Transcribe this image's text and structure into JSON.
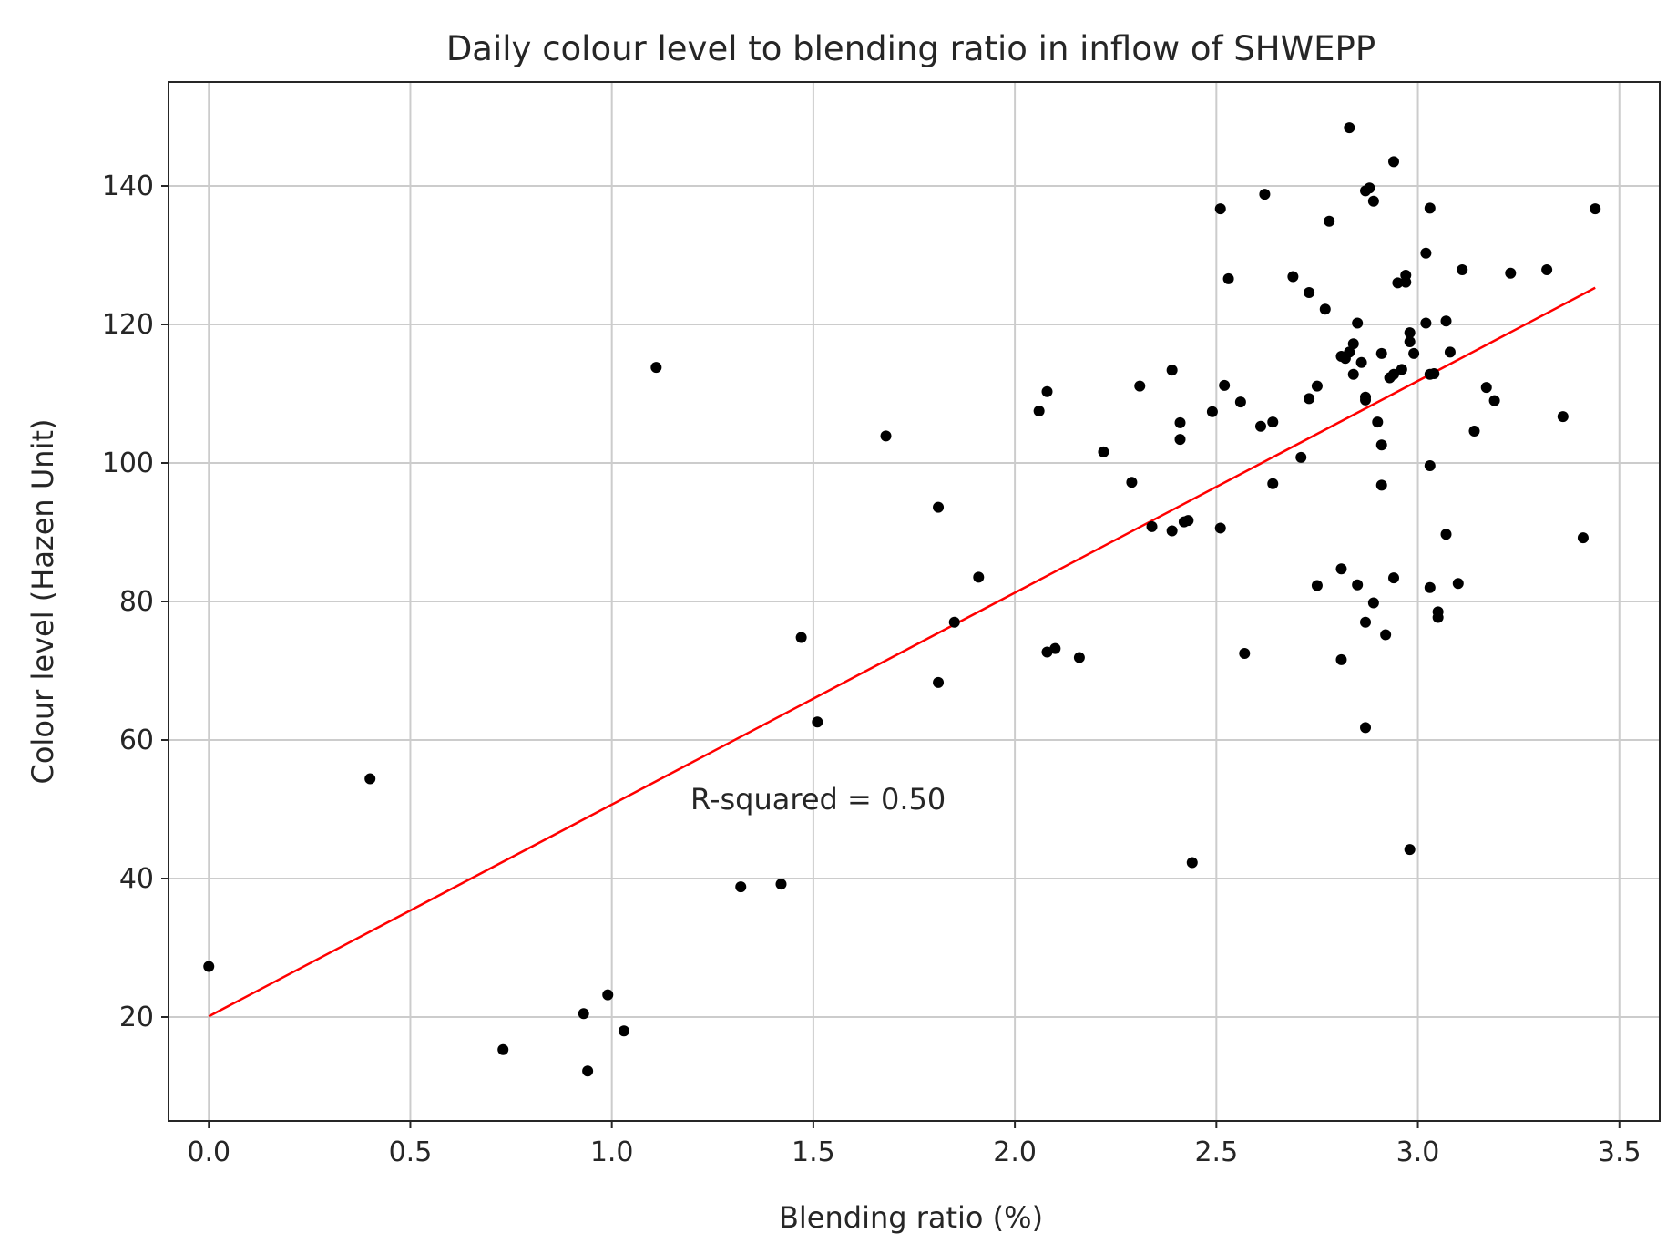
{
  "chart_data": {
    "type": "scatter",
    "title": "Daily colour level to blending ratio in inflow of SHWEPP",
    "xlabel": "Blending ratio (%)",
    "ylabel": "Colour level (Hazen Unit)",
    "xlim": [
      -0.1,
      3.6
    ],
    "ylim": [
      5,
      155
    ],
    "x_ticks": [
      0.0,
      0.5,
      1.0,
      1.5,
      2.0,
      2.5,
      3.0,
      3.5
    ],
    "x_tick_labels": [
      "0.0",
      "0.5",
      "1.0",
      "1.5",
      "2.0",
      "2.5",
      "3.0",
      "3.5"
    ],
    "y_ticks": [
      20,
      40,
      60,
      80,
      100,
      120,
      140
    ],
    "y_tick_labels": [
      "20",
      "40",
      "60",
      "80",
      "100",
      "120",
      "140"
    ],
    "grid": true,
    "annotation": "R-squared = 0.50",
    "point_color": "#000000",
    "trend_color": "#ff0000",
    "trendline": {
      "x": [
        0.0,
        3.44
      ],
      "y": [
        20.1,
        125.3
      ]
    },
    "points": [
      [
        0.0,
        27.3
      ],
      [
        0.4,
        54.4
      ],
      [
        0.73,
        15.3
      ],
      [
        0.93,
        20.5
      ],
      [
        0.94,
        12.2
      ],
      [
        0.99,
        23.2
      ],
      [
        1.03,
        18.0
      ],
      [
        1.11,
        113.8
      ],
      [
        1.32,
        38.8
      ],
      [
        1.42,
        39.2
      ],
      [
        1.47,
        74.8
      ],
      [
        1.51,
        62.6
      ],
      [
        1.68,
        103.9
      ],
      [
        1.81,
        93.6
      ],
      [
        1.81,
        68.3
      ],
      [
        1.85,
        77.0
      ],
      [
        1.91,
        83.5
      ],
      [
        2.06,
        107.5
      ],
      [
        2.08,
        110.3
      ],
      [
        2.08,
        72.7
      ],
      [
        2.1,
        73.2
      ],
      [
        2.16,
        71.9
      ],
      [
        2.22,
        101.6
      ],
      [
        2.29,
        97.2
      ],
      [
        2.31,
        111.1
      ],
      [
        2.34,
        90.8
      ],
      [
        2.39,
        113.4
      ],
      [
        2.39,
        90.2
      ],
      [
        2.41,
        105.8
      ],
      [
        2.41,
        103.4
      ],
      [
        2.42,
        91.5
      ],
      [
        2.43,
        91.7
      ],
      [
        2.44,
        42.3
      ],
      [
        2.49,
        107.4
      ],
      [
        2.51,
        136.7
      ],
      [
        2.51,
        90.6
      ],
      [
        2.52,
        111.2
      ],
      [
        2.53,
        126.6
      ],
      [
        2.56,
        108.8
      ],
      [
        2.57,
        72.5
      ],
      [
        2.61,
        105.3
      ],
      [
        2.62,
        138.8
      ],
      [
        2.64,
        105.9
      ],
      [
        2.64,
        97.0
      ],
      [
        2.69,
        126.9
      ],
      [
        2.71,
        100.8
      ],
      [
        2.73,
        124.6
      ],
      [
        2.73,
        109.3
      ],
      [
        2.75,
        111.1
      ],
      [
        2.75,
        82.3
      ],
      [
        2.77,
        122.2
      ],
      [
        2.78,
        134.9
      ],
      [
        2.81,
        115.4
      ],
      [
        2.81,
        84.7
      ],
      [
        2.81,
        71.6
      ],
      [
        2.82,
        115.1
      ],
      [
        2.83,
        148.4
      ],
      [
        2.83,
        116.0
      ],
      [
        2.84,
        117.2
      ],
      [
        2.84,
        112.8
      ],
      [
        2.85,
        120.2
      ],
      [
        2.85,
        82.4
      ],
      [
        2.86,
        114.5
      ],
      [
        2.87,
        139.3
      ],
      [
        2.87,
        109.5
      ],
      [
        2.87,
        109.1
      ],
      [
        2.87,
        77.0
      ],
      [
        2.87,
        61.8
      ],
      [
        2.88,
        139.7
      ],
      [
        2.89,
        137.8
      ],
      [
        2.89,
        79.8
      ],
      [
        2.9,
        105.9
      ],
      [
        2.91,
        115.8
      ],
      [
        2.91,
        102.6
      ],
      [
        2.91,
        96.8
      ],
      [
        2.92,
        75.2
      ],
      [
        2.93,
        112.3
      ],
      [
        2.94,
        143.5
      ],
      [
        2.94,
        112.8
      ],
      [
        2.94,
        83.4
      ],
      [
        2.95,
        126.0
      ],
      [
        2.96,
        113.5
      ],
      [
        2.97,
        127.1
      ],
      [
        2.97,
        126.1
      ],
      [
        2.98,
        118.8
      ],
      [
        2.98,
        117.5
      ],
      [
        2.98,
        44.2
      ],
      [
        2.99,
        115.8
      ],
      [
        3.02,
        130.3
      ],
      [
        3.02,
        120.2
      ],
      [
        3.03,
        136.8
      ],
      [
        3.03,
        112.8
      ],
      [
        3.03,
        99.6
      ],
      [
        3.03,
        82.0
      ],
      [
        3.04,
        112.9
      ],
      [
        3.05,
        78.5
      ],
      [
        3.05,
        77.7
      ],
      [
        3.07,
        120.5
      ],
      [
        3.07,
        89.7
      ],
      [
        3.08,
        116.0
      ],
      [
        3.1,
        82.6
      ],
      [
        3.11,
        127.9
      ],
      [
        3.14,
        104.6
      ],
      [
        3.17,
        110.9
      ],
      [
        3.19,
        109.0
      ],
      [
        3.23,
        127.4
      ],
      [
        3.32,
        127.9
      ],
      [
        3.36,
        106.7
      ],
      [
        3.41,
        89.2
      ],
      [
        3.44,
        136.7
      ]
    ]
  }
}
